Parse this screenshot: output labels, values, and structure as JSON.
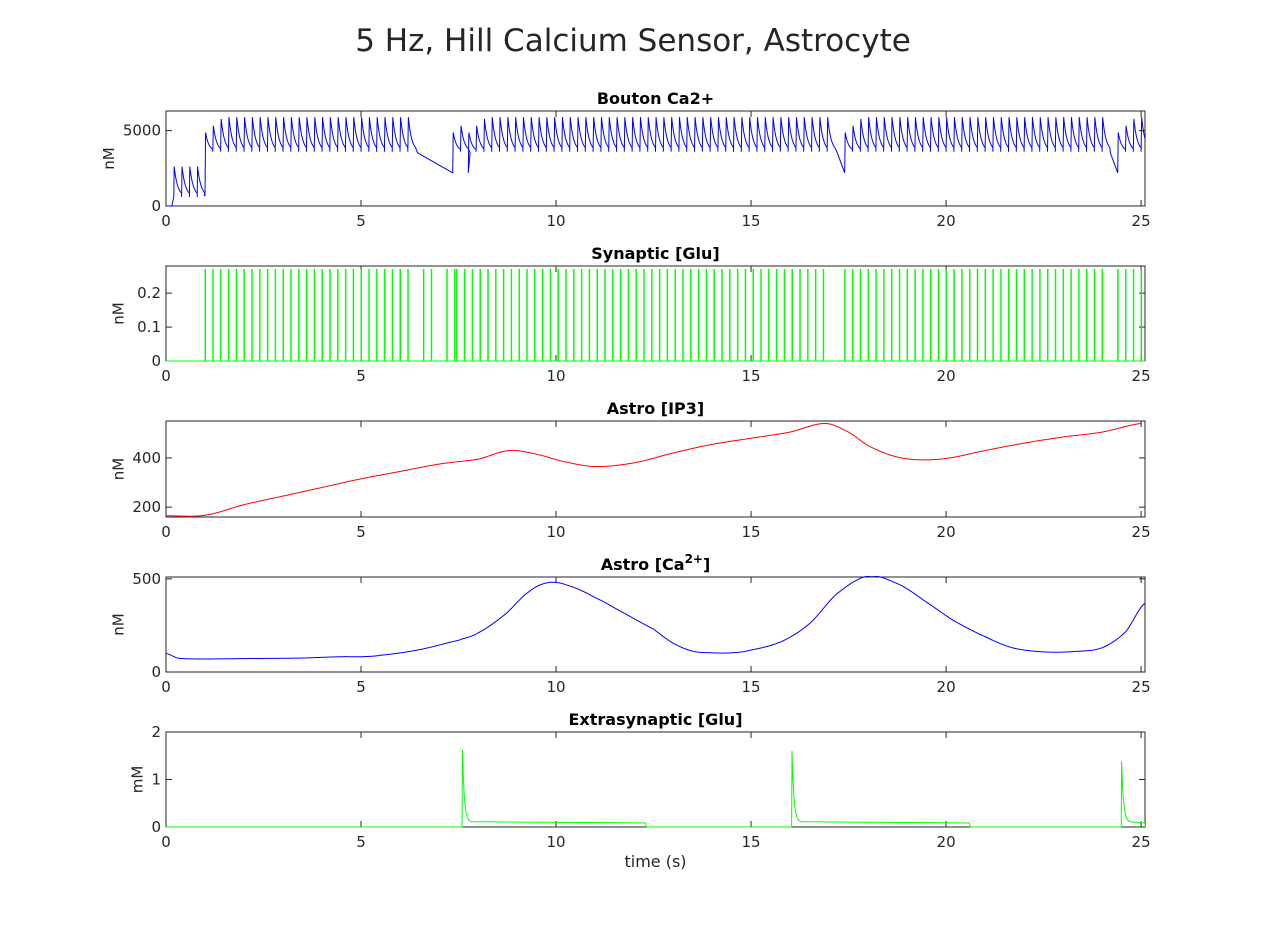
{
  "figure_title": "5 Hz, Hill Calcium Sensor, Astrocyte",
  "chart_data": [
    {
      "type": "line",
      "title": "Bouton Ca2+",
      "title_sup": "",
      "title_suffix": "",
      "xlabel": "",
      "ylabel": "nM",
      "xlim": [
        0,
        25
      ],
      "ylim": [
        0,
        6300
      ],
      "xticks": [
        "0",
        "5",
        "10",
        "15",
        "20",
        "25"
      ],
      "yticks": [
        {
          "v": 0,
          "label": "0"
        },
        {
          "v": 5000,
          "label": "5000"
        }
      ],
      "grid": false,
      "color": "#0000ff",
      "series": [
        {
          "kind": "boutonCa",
          "trains": [
            [
              1.0,
              6.2
            ],
            [
              7.35,
              7.6
            ],
            [
              7.75,
              17.0
            ],
            [
              17.4,
              24.0
            ],
            [
              24.4,
              25.1
            ]
          ],
          "early": [
            0.2,
            0.4,
            0.6,
            0.8
          ],
          "early_peak": 2850,
          "peak": 6300,
          "trough": 3600,
          "min_after_gap": 2200
        }
      ]
    },
    {
      "type": "line",
      "title": "Synaptic [Glu]",
      "title_sup": "",
      "title_suffix": "",
      "xlabel": "",
      "ylabel": "nM",
      "xlim": [
        0,
        25
      ],
      "ylim": [
        0,
        0.28
      ],
      "xticks": [
        "0",
        "5",
        "10",
        "15",
        "20",
        "25"
      ],
      "yticks": [
        {
          "v": 0,
          "label": "0"
        },
        {
          "v": 0.1,
          "label": "0.1"
        },
        {
          "v": 0.2,
          "label": "0.2"
        }
      ],
      "grid": false,
      "color": "#00ff00",
      "series": [
        {
          "kind": "spikes",
          "rate_hz": 5,
          "amplitude": 0.27,
          "trains": [
            [
              1.0,
              6.2
            ],
            [
              6.6,
              6.9
            ],
            [
              7.2,
              7.4
            ],
            [
              7.45,
              17.0
            ],
            [
              17.4,
              24.0
            ],
            [
              24.4,
              25.1
            ]
          ]
        }
      ]
    },
    {
      "type": "line",
      "title": "Astro [IP3]",
      "title_sup": "",
      "title_suffix": "",
      "xlabel": "",
      "ylabel": "nM",
      "xlim": [
        0,
        25
      ],
      "ylim": [
        160,
        550
      ],
      "xticks": [
        "0",
        "5",
        "10",
        "15",
        "20",
        "25"
      ],
      "yticks": [
        {
          "v": 200,
          "label": "200"
        },
        {
          "v": 400,
          "label": "400"
        }
      ],
      "grid": false,
      "color": "#ff0000",
      "series": [
        {
          "kind": "curve",
          "x": [
            0,
            1.0,
            2.0,
            3.0,
            4.0,
            5.0,
            6.0,
            7.0,
            8.0,
            8.8,
            9.5,
            10.2,
            11.0,
            12.0,
            13.0,
            14.0,
            15.0,
            16.0,
            16.9,
            17.5,
            18.0,
            18.6,
            19.2,
            20.0,
            21.0,
            22.0,
            23.0,
            24.0,
            25.0
          ],
          "y": [
            165,
            167,
            210,
            245,
            280,
            315,
            345,
            375,
            395,
            430,
            415,
            385,
            365,
            380,
            420,
            455,
            480,
            505,
            540,
            505,
            450,
            410,
            393,
            398,
            430,
            460,
            485,
            505,
            540
          ]
        }
      ]
    },
    {
      "type": "line",
      "title": "Astro [Ca",
      "title_sup": "2+",
      "title_suffix": "]",
      "xlabel": "",
      "ylabel": "nM",
      "xlim": [
        0,
        25
      ],
      "ylim": [
        0,
        510
      ],
      "xticks": [
        "0",
        "5",
        "10",
        "15",
        "20",
        "25"
      ],
      "yticks": [
        {
          "v": 0,
          "label": "0"
        },
        {
          "v": 500,
          "label": "500"
        }
      ],
      "grid": false,
      "color": "#0000ff",
      "series": [
        {
          "kind": "curve",
          "x": [
            0,
            0.3,
            0.8,
            2.0,
            3.5,
            4.5,
            5.0,
            5.5,
            6.5,
            7.5,
            8.0,
            8.7,
            9.3,
            9.8,
            10.3,
            11.0,
            11.8,
            12.5,
            13.0,
            13.5,
            14.0,
            14.5,
            15.0,
            15.8,
            16.5,
            17.2,
            18.0,
            18.8,
            19.5,
            20.2,
            21.0,
            21.7,
            22.5,
            23.3,
            24.0,
            24.6,
            25.1
          ],
          "y": [
            100,
            75,
            70,
            72,
            75,
            82,
            82,
            90,
            120,
            170,
            210,
            310,
            430,
            480,
            465,
            400,
            310,
            230,
            155,
            112,
            103,
            103,
            118,
            165,
            260,
            420,
            515,
            470,
            375,
            275,
            190,
            130,
            108,
            110,
            130,
            215,
            370
          ]
        }
      ]
    },
    {
      "type": "line",
      "title": "Extrasynaptic [Glu]",
      "title_sup": "",
      "title_suffix": "",
      "xlabel": "time (s)",
      "ylabel": "mM",
      "xlim": [
        0,
        25
      ],
      "ylim": [
        0,
        2
      ],
      "xticks": [
        "0",
        "5",
        "10",
        "15",
        "20",
        "25"
      ],
      "yticks": [
        {
          "v": 0,
          "label": "0"
        },
        {
          "v": 1,
          "label": "1"
        },
        {
          "v": 2,
          "label": "2"
        }
      ],
      "grid": false,
      "color": "#00ff00",
      "series": [
        {
          "kind": "release",
          "events": [
            {
              "t": 7.6,
              "peak": 1.62,
              "plateau": 0.1,
              "end": 12.3
            },
            {
              "t": 16.05,
              "peak": 1.6,
              "plateau": 0.1,
              "end": 20.6
            },
            {
              "t": 24.5,
              "peak": 1.38,
              "plateau": 0.1,
              "end": 25.1
            }
          ]
        }
      ]
    }
  ]
}
